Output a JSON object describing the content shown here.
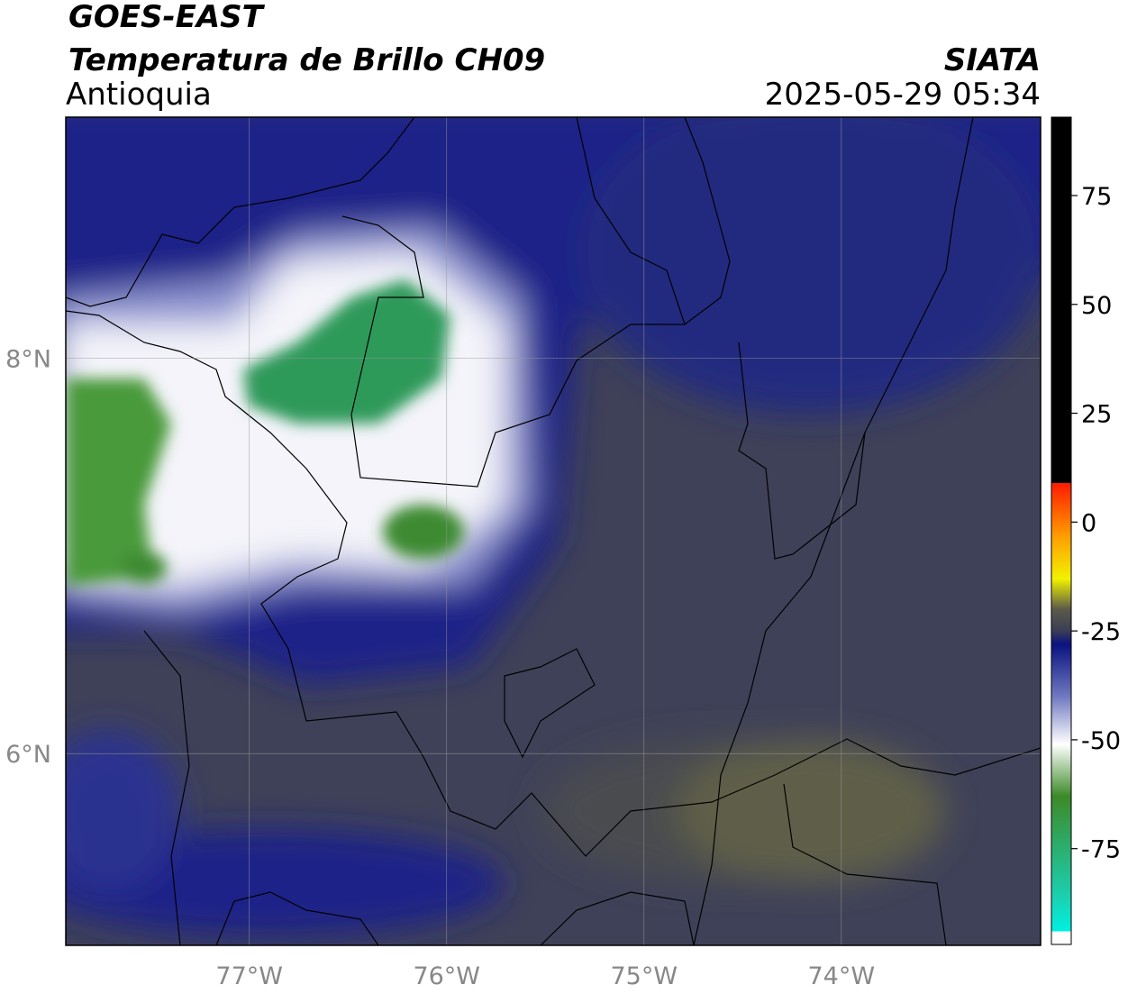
{
  "header": {
    "title": "GOES-EAST",
    "subtitle": "Temperatura de Brillo CH09",
    "region": "Antioquia",
    "source": "SIATA",
    "timestamp": "2025-05-29 05:34"
  },
  "map": {
    "xlim": [
      -77.93,
      -72.99
    ],
    "ylim": [
      5.03,
      9.22
    ],
    "xticks": [
      {
        "value": -77,
        "label": "77°W"
      },
      {
        "value": -76,
        "label": "76°W"
      },
      {
        "value": -75,
        "label": "75°W"
      },
      {
        "value": -74,
        "label": "74°W"
      }
    ],
    "yticks": [
      {
        "value": 8,
        "label": "8°N"
      },
      {
        "value": 6,
        "label": "6°N"
      }
    ],
    "grid": true
  },
  "colorbar": {
    "lim": [
      -97,
      93
    ],
    "ticks": [
      75,
      50,
      25,
      0,
      -25,
      -50,
      -75
    ]
  }
}
